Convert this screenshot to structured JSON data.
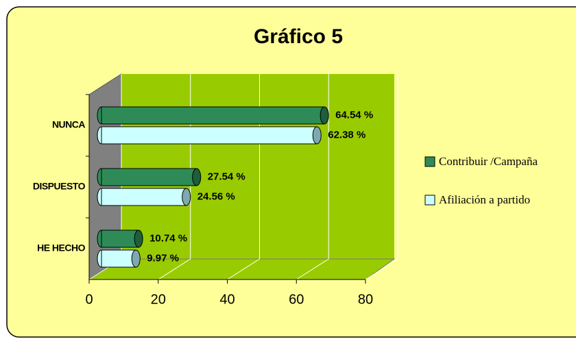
{
  "chart_data": {
    "type": "bar",
    "orientation": "horizontal",
    "title": "Gráfico 5",
    "categories": [
      "NUNCA",
      "DISPUESTO",
      "HE HECHO"
    ],
    "series": [
      {
        "name": "Contribuir /Campaña",
        "color": "#2e8b57",
        "values": [
          64.54,
          27.54,
          10.74
        ],
        "value_labels": [
          "64.54 %",
          "27.54 %",
          "10.74 %"
        ]
      },
      {
        "name": "Afiliación a partido",
        "color": "#ccffff",
        "values": [
          62.38,
          24.56,
          9.97
        ],
        "value_labels": [
          "62.38 %",
          "24.56 %",
          "9.97 %"
        ]
      }
    ],
    "xlim": [
      0,
      80
    ],
    "xticks": [
      0,
      20,
      40,
      60,
      80
    ],
    "grid": true,
    "legend": "right"
  }
}
